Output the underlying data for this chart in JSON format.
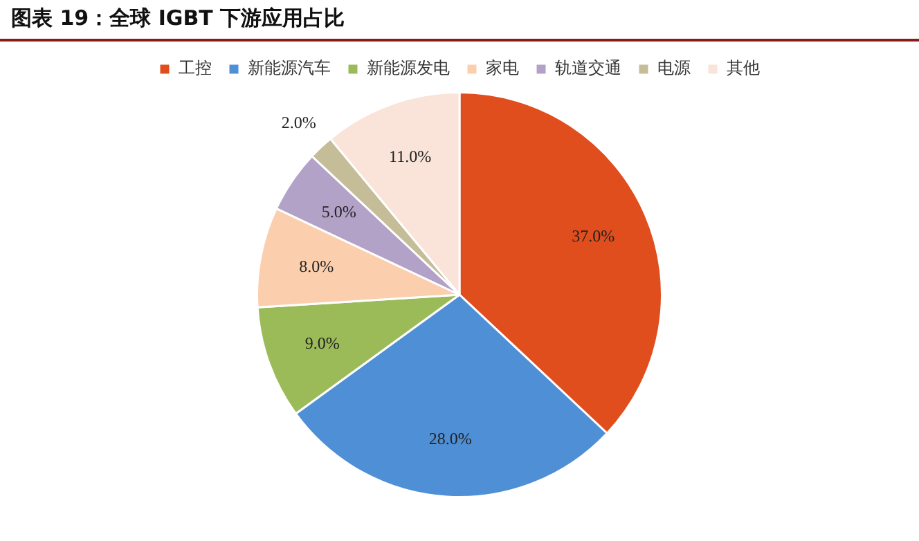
{
  "chart_data": {
    "type": "pie",
    "title": "图表 19：全球 IGBT 下游应用占比",
    "categories": [
      "工控",
      "新能源汽车",
      "新能源发电",
      "家电",
      "轨道交通",
      "电源",
      "其他"
    ],
    "values": [
      37,
      28,
      9,
      8,
      5,
      2,
      11
    ],
    "colors": [
      "#e04e1e",
      "#4f8fd6",
      "#9bbb59",
      "#fbcfae",
      "#b2a2c7",
      "#c4bd97",
      "#fae3d8"
    ],
    "value_labels": [
      "37.0%",
      "28.0%",
      "9.0%",
      "8.0%",
      "5.0%",
      "2.0%",
      "11.0%"
    ],
    "legend": "top"
  }
}
